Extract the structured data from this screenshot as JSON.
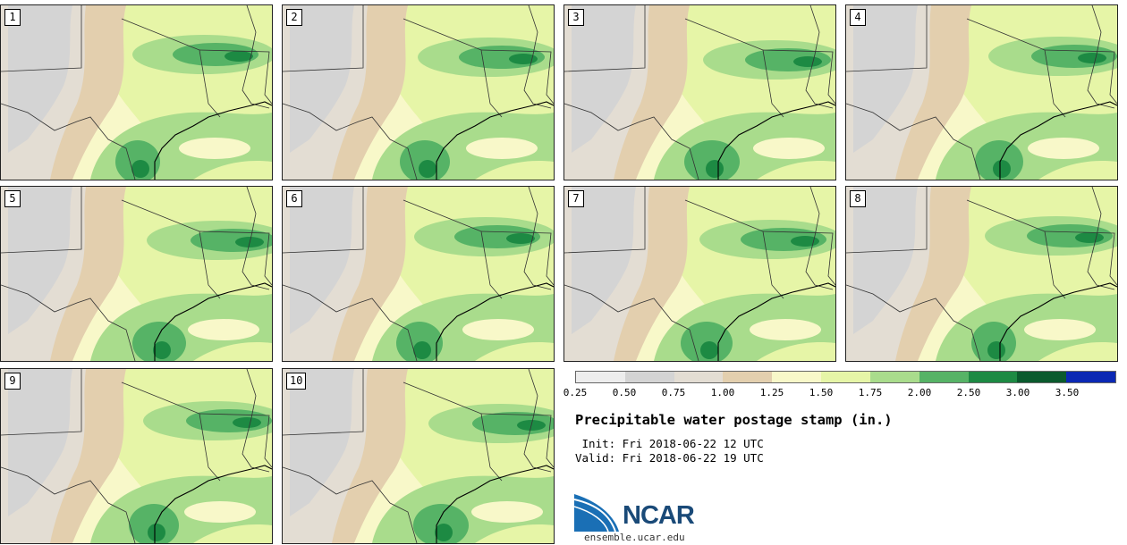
{
  "panels": [
    {
      "label": "1"
    },
    {
      "label": "2"
    },
    {
      "label": "3"
    },
    {
      "label": "4"
    },
    {
      "label": "5"
    },
    {
      "label": "6"
    },
    {
      "label": "7"
    },
    {
      "label": "8"
    },
    {
      "label": "9"
    },
    {
      "label": "10"
    }
  ],
  "colorbar": {
    "colors": [
      "#ededed",
      "#d4d4d4",
      "#e3ddd3",
      "#e3cfae",
      "#f8f8c9",
      "#e6f5a7",
      "#a9dc8c",
      "#56b366",
      "#1d8a43",
      "#0a5a2d",
      "#0b28b4"
    ],
    "tick_labels": [
      "0.25",
      "0.50",
      "0.75",
      "1.00",
      "1.25",
      "1.50",
      "1.75",
      "2.00",
      "2.50",
      "3.00",
      "3.50"
    ]
  },
  "title": "Precipitable water postage stamp (in.)",
  "init_line": " Init: Fri 2018-06-22 12 UTC",
  "valid_line": "Valid: Fri 2018-06-22 19 UTC",
  "logo": {
    "text": "NCAR",
    "url": "ensemble.ucar.edu"
  }
}
